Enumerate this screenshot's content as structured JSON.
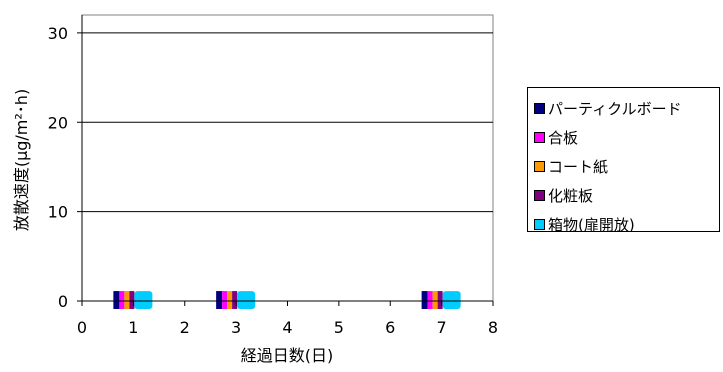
{
  "chart_data": {
    "type": "bar",
    "x": [
      1,
      3,
      7
    ],
    "series": [
      {
        "name": "パーティクルボード",
        "color": "#000080",
        "values": [
          1,
          1,
          1
        ]
      },
      {
        "name": "合板",
        "color": "#FF00FF",
        "values": [
          1,
          1,
          1
        ]
      },
      {
        "name": "コート紙",
        "color": "#FF9900",
        "values": [
          1,
          1,
          1
        ]
      },
      {
        "name": "化粧板",
        "color": "#800080",
        "values": [
          1,
          1,
          1
        ]
      },
      {
        "name": "箱物(扉開放)",
        "color": "#00CCFF",
        "values": [
          1,
          1,
          1
        ]
      }
    ],
    "xlabel": "経過日数(日)",
    "ylabel": "放散速度(μg/m²･h)",
    "xlim": [
      0,
      8
    ],
    "ylim": [
      0,
      32
    ],
    "xticks": [
      0,
      1,
      2,
      3,
      4,
      5,
      6,
      7,
      8
    ],
    "yticks": [
      0,
      10,
      20,
      30
    ],
    "grid": true,
    "legend_position": "right"
  }
}
